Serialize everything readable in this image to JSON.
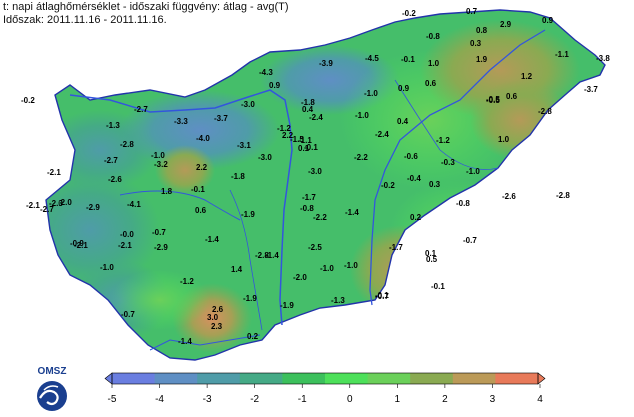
{
  "header": {
    "line1": "t: napi átlaghőmérséklet - időszaki függvény: átlag - avg(T)",
    "line2": "Időszak: 2011.11.16 - 2011.11.16."
  },
  "logo": {
    "text": "OMSZ",
    "icon": "omsz-wave-icon"
  },
  "legend": {
    "ticks": [
      "-5",
      "-4",
      "-3",
      "-2",
      "-1",
      "0",
      "1",
      "2",
      "3",
      "4"
    ],
    "colors": [
      "#6a7ee0",
      "#5f8fc4",
      "#4f9ca8",
      "#45aa86",
      "#3cc05c",
      "#4de05a",
      "#6bd05a",
      "#8aaa52",
      "#bb9a58",
      "#e87a5a"
    ]
  },
  "colors": {
    "border": "#2233aa",
    "river": "#3355dd"
  },
  "values": [
    "-0.2",
    "0.7",
    "2.9",
    "0.9",
    "-0.8",
    "0.8",
    "0.3",
    "-1.1",
    "-4.3",
    "-3.9",
    "-4.5",
    "-0.1",
    "1.0",
    "1.9",
    "-3.8",
    "0.9",
    "0.6",
    "1.2",
    "-3.7",
    "-0.2",
    "-0.5",
    "-2.7",
    "-3.0",
    "-1.8",
    "-1.0",
    "0.9",
    "-1.0",
    "-0.5",
    "0.6",
    "-2.8",
    "-3.3",
    "-3.7",
    "0.4",
    "-2.4",
    "0.4",
    "-1.3",
    "-4.0",
    "-1.2",
    "-2.4",
    "-1.2",
    "1.0",
    "-2.8",
    "-3.1",
    "2.2",
    "-1.1",
    "-0.1",
    "-1.0",
    "-3.2",
    "-3.0",
    "-1.5",
    "0.1",
    "-2.2",
    "-0.6",
    "-0.3",
    "-2.7",
    "2.2",
    "-1.0",
    "-2.1",
    "-2.6",
    "-1.8",
    "-3.0",
    "-0.2",
    "-0.4",
    "0.3",
    "1.8",
    "-0.1",
    "-2.3",
    "-1.7",
    "-0.8",
    "-2.7",
    "-2.9",
    "-4.1",
    "0.6",
    "-1.9",
    "-2.2",
    "-1.4",
    "0.2",
    "-0.8",
    "-2.6",
    "-0.0",
    "-0.7",
    "-1.4",
    "-0.9",
    "-2.1",
    "-2.8",
    "-1.7",
    "0.1",
    "-1.0",
    "-2.9",
    "-1.4",
    "-2.5",
    "-2.0",
    "-1.0",
    "-1.0",
    "0.5",
    "-1.2",
    "1.4",
    "-0.7",
    "-1.9",
    "-1.3",
    "-0.1",
    "-0.7",
    "2.6",
    "3.0",
    "2.3",
    "-1.9",
    "-0.7",
    "-0.1",
    "-1.4",
    "0.2",
    "-2.0",
    "-2.1",
    "-2.1",
    "-2.8"
  ]
}
